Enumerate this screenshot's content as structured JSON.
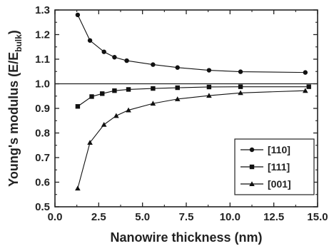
{
  "chart_data": {
    "type": "line",
    "xlabel": "Nanowire thickness (nm)",
    "ylabel_main": "Young's modulus (E/E",
    "ylabel_sub": "bulk",
    "ylabel_end": ")",
    "xlim": [
      0.0,
      15.0
    ],
    "ylim": [
      0.5,
      1.3
    ],
    "xticks": [
      "0.0",
      "2.5",
      "5.0",
      "7.5",
      "10.0",
      "12.5",
      "15.0"
    ],
    "yticks": [
      "0.5",
      "0.6",
      "0.7",
      "0.8",
      "0.9",
      "1.0",
      "1.1",
      "1.2",
      "1.3"
    ],
    "reference_line_y": 1.0,
    "legend_position": "bottom-right",
    "series": [
      {
        "name": "[110]",
        "marker": "circle",
        "x": [
          1.3,
          2.0,
          2.8,
          3.4,
          4.1,
          5.6,
          7.0,
          8.8,
          10.6,
          14.3
        ],
        "y": [
          1.28,
          1.176,
          1.13,
          1.108,
          1.094,
          1.078,
          1.066,
          1.055,
          1.049,
          1.046
        ]
      },
      {
        "name": "[111]",
        "marker": "square",
        "x": [
          1.3,
          2.1,
          2.7,
          3.4,
          4.2,
          5.6,
          7.0,
          8.8,
          10.6,
          14.5
        ],
        "y": [
          0.908,
          0.948,
          0.96,
          0.972,
          0.977,
          0.981,
          0.984,
          0.987,
          0.988,
          0.988
        ]
      },
      {
        "name": "[001]",
        "marker": "triangle",
        "x": [
          1.3,
          2.0,
          2.8,
          3.5,
          4.2,
          5.6,
          7.0,
          8.8,
          10.6,
          14.3
        ],
        "y": [
          0.575,
          0.761,
          0.834,
          0.87,
          0.893,
          0.92,
          0.938,
          0.952,
          0.963,
          0.972
        ]
      }
    ]
  }
}
